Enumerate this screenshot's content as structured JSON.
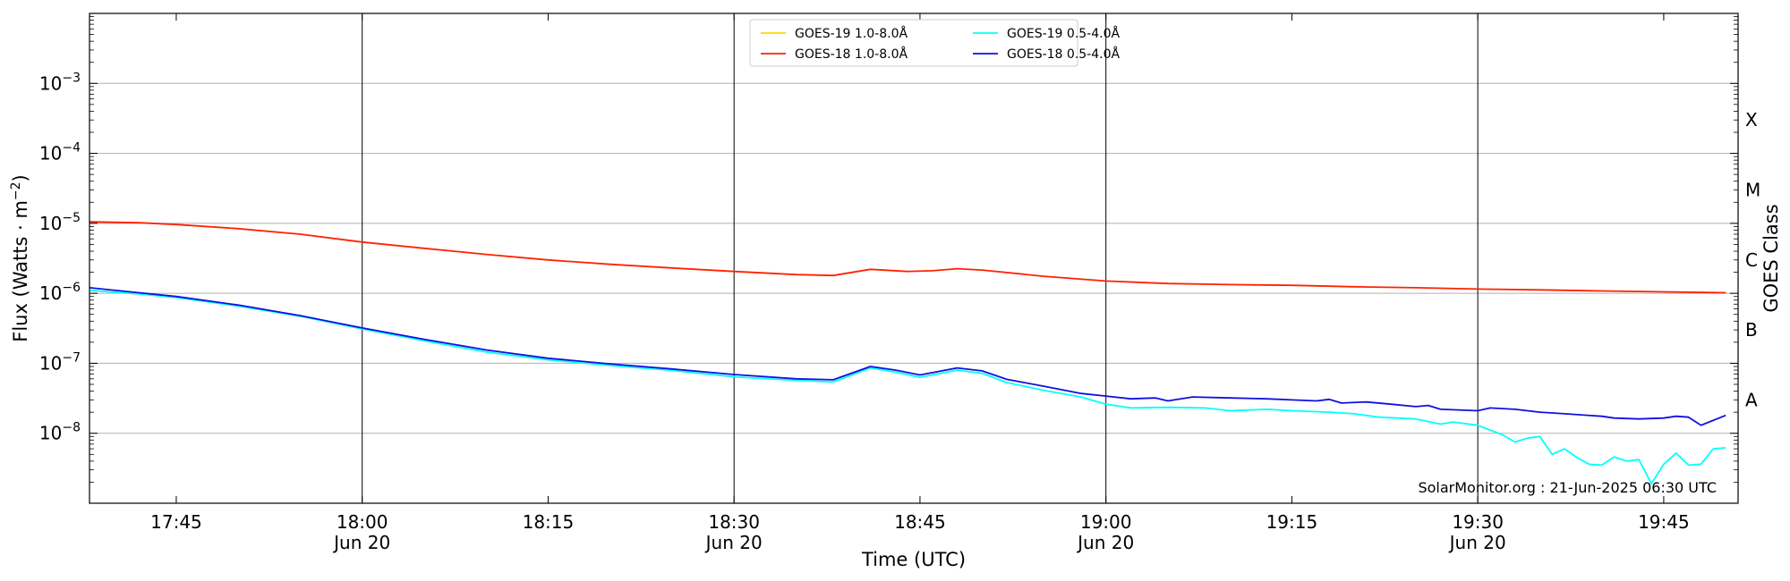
{
  "chart_data": {
    "type": "line",
    "xlabel": "Time (UTC)",
    "ylabel": "Flux (Watts · m⁻²)",
    "right_label": "GOES Class",
    "x_range": [
      "17:38",
      "19:51"
    ],
    "y_scale": "log",
    "ylim": [
      1e-09,
      0.01
    ],
    "grid": "horizontal at each decade",
    "legend_position": "top-center",
    "watermark": "SolarMonitor.org : 21-Jun-2025 06:30 UTC",
    "x_ticks": [
      {
        "t": "17:45",
        "label": "17:45",
        "sub": ""
      },
      {
        "t": "18:00",
        "label": "18:00",
        "sub": "Jun 20"
      },
      {
        "t": "18:15",
        "label": "18:15",
        "sub": ""
      },
      {
        "t": "18:30",
        "label": "18:30",
        "sub": "Jun 20"
      },
      {
        "t": "18:45",
        "label": "18:45",
        "sub": ""
      },
      {
        "t": "19:00",
        "label": "19:00",
        "sub": "Jun 20"
      },
      {
        "t": "19:15",
        "label": "19:15",
        "sub": ""
      },
      {
        "t": "19:30",
        "label": "19:30",
        "sub": "Jun 20"
      },
      {
        "t": "19:45",
        "label": "19:45",
        "sub": ""
      }
    ],
    "y_ticks": [
      {
        "v": 1e-08,
        "base": "10",
        "exp": "−8"
      },
      {
        "v": 1e-07,
        "base": "10",
        "exp": "−7"
      },
      {
        "v": 1e-06,
        "base": "10",
        "exp": "−6"
      },
      {
        "v": 1e-05,
        "base": "10",
        "exp": "−5"
      },
      {
        "v": 0.0001,
        "base": "10",
        "exp": "−4"
      },
      {
        "v": 0.001,
        "base": "10",
        "exp": "−3"
      }
    ],
    "vertical_lines": [
      "18:00",
      "18:30",
      "19:00",
      "19:30"
    ],
    "goes_classes": [
      {
        "label": "A",
        "v": 3e-08
      },
      {
        "label": "B",
        "v": 3e-07
      },
      {
        "label": "C",
        "v": 3e-06
      },
      {
        "label": "M",
        "v": 3e-05
      },
      {
        "label": "X",
        "v": 0.0003
      }
    ],
    "series": [
      {
        "name": "GOES-19 1.0-8.0Å",
        "color": "#ffd700",
        "points": []
      },
      {
        "name": "GOES-18 1.0-8.0Å",
        "color": "#ff2200",
        "points": [
          [
            "17:38",
            1.05e-05
          ],
          [
            "17:42",
            1.02e-05
          ],
          [
            "17:45",
            9.6e-06
          ],
          [
            "17:50",
            8.4e-06
          ],
          [
            "17:55",
            7e-06
          ],
          [
            "18:00",
            5.4e-06
          ],
          [
            "18:05",
            4.4e-06
          ],
          [
            "18:10",
            3.6e-06
          ],
          [
            "18:15",
            3e-06
          ],
          [
            "18:20",
            2.6e-06
          ],
          [
            "18:25",
            2.3e-06
          ],
          [
            "18:30",
            2.05e-06
          ],
          [
            "18:35",
            1.85e-06
          ],
          [
            "18:38",
            1.8e-06
          ],
          [
            "18:41",
            2.2e-06
          ],
          [
            "18:44",
            2.05e-06
          ],
          [
            "18:46",
            2.1e-06
          ],
          [
            "18:48",
            2.25e-06
          ],
          [
            "18:50",
            2.15e-06
          ],
          [
            "18:55",
            1.75e-06
          ],
          [
            "19:00",
            1.5e-06
          ],
          [
            "19:05",
            1.38e-06
          ],
          [
            "19:10",
            1.33e-06
          ],
          [
            "19:15",
            1.3e-06
          ],
          [
            "19:20",
            1.24e-06
          ],
          [
            "19:25",
            1.2e-06
          ],
          [
            "19:30",
            1.15e-06
          ],
          [
            "19:35",
            1.12e-06
          ],
          [
            "19:40",
            1.08e-06
          ],
          [
            "19:45",
            1.05e-06
          ],
          [
            "19:50",
            1.02e-06
          ]
        ]
      },
      {
        "name": "GOES-19 0.5-4.0Å",
        "color": "#00ffff",
        "points": [
          [
            "17:38",
            1.1e-06
          ],
          [
            "17:42",
            9.8e-07
          ],
          [
            "17:45",
            8.7e-07
          ],
          [
            "17:50",
            6.6e-07
          ],
          [
            "17:55",
            4.7e-07
          ],
          [
            "18:00",
            3.1e-07
          ],
          [
            "18:05",
            2.1e-07
          ],
          [
            "18:10",
            1.45e-07
          ],
          [
            "18:15",
            1.12e-07
          ],
          [
            "18:20",
            9.3e-08
          ],
          [
            "18:25",
            7.9e-08
          ],
          [
            "18:30",
            6.4e-08
          ],
          [
            "18:35",
            5.7e-08
          ],
          [
            "18:38",
            5.4e-08
          ],
          [
            "18:41",
            8.6e-08
          ],
          [
            "18:43",
            7.5e-08
          ],
          [
            "18:45",
            6.3e-08
          ],
          [
            "18:48",
            8e-08
          ],
          [
            "18:50",
            7.2e-08
          ],
          [
            "18:52",
            5.3e-08
          ],
          [
            "18:55",
            4.1e-08
          ],
          [
            "18:58",
            3.3e-08
          ],
          [
            "19:00",
            2.6e-08
          ],
          [
            "19:02",
            2.3e-08
          ],
          [
            "19:05",
            2.35e-08
          ],
          [
            "19:08",
            2.3e-08
          ],
          [
            "19:10",
            2.1e-08
          ],
          [
            "19:13",
            2.2e-08
          ],
          [
            "19:15",
            2.1e-08
          ],
          [
            "19:18",
            2e-08
          ],
          [
            "19:20",
            1.9e-08
          ],
          [
            "19:22",
            1.7e-08
          ],
          [
            "19:25",
            1.6e-08
          ],
          [
            "19:27",
            1.35e-08
          ],
          [
            "19:28",
            1.45e-08
          ],
          [
            "19:30",
            1.3e-08
          ],
          [
            "19:32",
            9.5e-09
          ],
          [
            "19:33",
            7.5e-09
          ],
          [
            "19:34",
            8.5e-09
          ],
          [
            "19:35",
            9e-09
          ],
          [
            "19:36",
            5e-09
          ],
          [
            "19:37",
            6e-09
          ],
          [
            "19:38",
            4.5e-09
          ],
          [
            "19:39",
            3.6e-09
          ],
          [
            "19:40",
            3.5e-09
          ],
          [
            "19:41",
            4.6e-09
          ],
          [
            "19:42",
            4e-09
          ],
          [
            "19:43",
            4.2e-09
          ],
          [
            "19:44",
            1.9e-09
          ],
          [
            "19:45",
            3.6e-09
          ],
          [
            "19:46",
            5.2e-09
          ],
          [
            "19:47",
            3.5e-09
          ],
          [
            "19:48",
            3.6e-09
          ],
          [
            "19:49",
            6e-09
          ],
          [
            "19:50",
            6.2e-09
          ]
        ]
      },
      {
        "name": "GOES-18 0.5-4.0Å",
        "color": "#1010e0",
        "points": [
          [
            "17:38",
            1.2e-06
          ],
          [
            "17:42",
            1.02e-06
          ],
          [
            "17:45",
            9e-07
          ],
          [
            "17:50",
            6.8e-07
          ],
          [
            "17:55",
            4.8e-07
          ],
          [
            "18:00",
            3.2e-07
          ],
          [
            "18:05",
            2.2e-07
          ],
          [
            "18:10",
            1.55e-07
          ],
          [
            "18:15",
            1.18e-07
          ],
          [
            "18:20",
            9.8e-08
          ],
          [
            "18:25",
            8.3e-08
          ],
          [
            "18:30",
            6.9e-08
          ],
          [
            "18:35",
            6e-08
          ],
          [
            "18:38",
            5.8e-08
          ],
          [
            "18:41",
            9e-08
          ],
          [
            "18:43",
            8e-08
          ],
          [
            "18:45",
            6.8e-08
          ],
          [
            "18:48",
            8.6e-08
          ],
          [
            "18:50",
            7.8e-08
          ],
          [
            "18:52",
            5.9e-08
          ],
          [
            "18:55",
            4.7e-08
          ],
          [
            "18:58",
            3.7e-08
          ],
          [
            "19:00",
            3.4e-08
          ],
          [
            "19:02",
            3.1e-08
          ],
          [
            "19:04",
            3.2e-08
          ],
          [
            "19:05",
            2.9e-08
          ],
          [
            "19:07",
            3.3e-08
          ],
          [
            "19:10",
            3.2e-08
          ],
          [
            "19:13",
            3.1e-08
          ],
          [
            "19:15",
            3e-08
          ],
          [
            "19:17",
            2.9e-08
          ],
          [
            "19:18",
            3.05e-08
          ],
          [
            "19:19",
            2.7e-08
          ],
          [
            "19:21",
            2.8e-08
          ],
          [
            "19:23",
            2.6e-08
          ],
          [
            "19:25",
            2.4e-08
          ],
          [
            "19:26",
            2.5e-08
          ],
          [
            "19:27",
            2.2e-08
          ],
          [
            "19:30",
            2.1e-08
          ],
          [
            "19:31",
            2.3e-08
          ],
          [
            "19:33",
            2.2e-08
          ],
          [
            "19:35",
            2e-08
          ],
          [
            "19:37",
            1.9e-08
          ],
          [
            "19:40",
            1.75e-08
          ],
          [
            "19:41",
            1.65e-08
          ],
          [
            "19:43",
            1.6e-08
          ],
          [
            "19:45",
            1.65e-08
          ],
          [
            "19:46",
            1.75e-08
          ],
          [
            "19:47",
            1.7e-08
          ],
          [
            "19:48",
            1.3e-08
          ],
          [
            "19:50",
            1.8e-08
          ]
        ]
      }
    ]
  }
}
